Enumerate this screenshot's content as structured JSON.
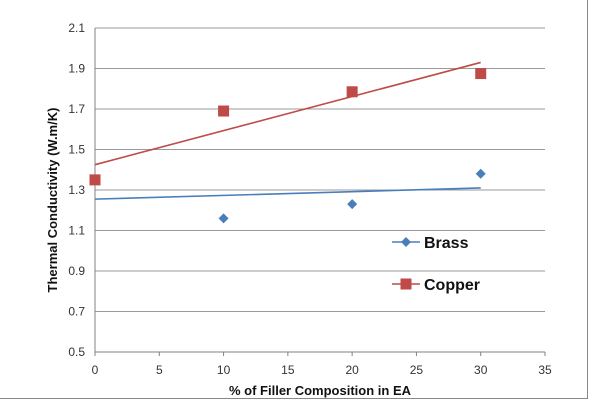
{
  "chart_data": {
    "type": "scatter",
    "xlabel": "% of Filler Composition in EA",
    "ylabel": "Thermal Conductivity (W.m/K)",
    "xlim": [
      0,
      35
    ],
    "ylim": [
      0.5,
      2.1
    ],
    "x_ticks": [
      0,
      5,
      10,
      15,
      20,
      25,
      30,
      35
    ],
    "y_ticks": [
      0.5,
      0.7,
      0.9,
      1.1,
      1.3,
      1.5,
      1.7,
      1.9,
      2.1
    ],
    "grid": "horizontal",
    "legend_position": "center-right",
    "series": [
      {
        "name": "Brass",
        "color": "#4a7ebb",
        "marker": "diamond",
        "x": [
          10,
          20,
          30
        ],
        "y": [
          1.16,
          1.23,
          1.38
        ],
        "trendline": {
          "x": [
            0,
            30
          ],
          "y": [
            1.255,
            1.31
          ]
        }
      },
      {
        "name": "Copper",
        "color": "#be4b48",
        "marker": "square",
        "x": [
          0,
          10,
          20,
          30
        ],
        "y": [
          1.35,
          1.69,
          1.785,
          1.875
        ],
        "trendline": {
          "x": [
            0,
            30
          ],
          "y": [
            1.425,
            1.93
          ]
        }
      }
    ]
  }
}
